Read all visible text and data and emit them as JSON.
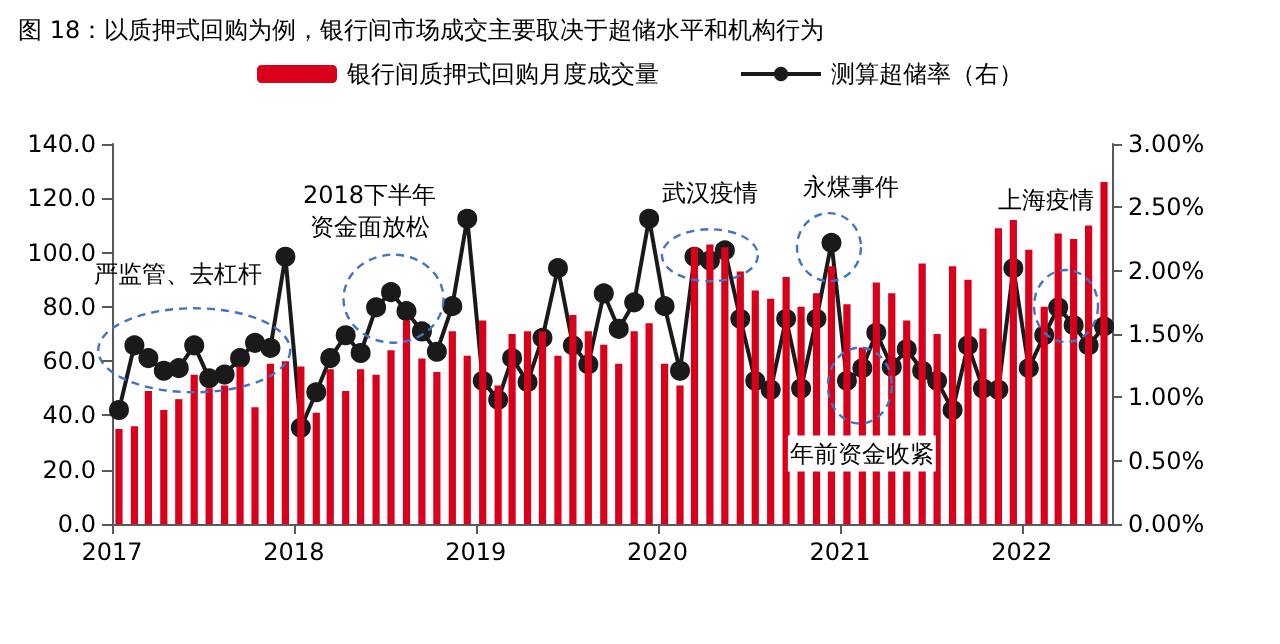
{
  "chart_data": {
    "type": "bar",
    "title": "图 18：以质押式回购为例，银行间市场成交主要取决于超储水平和机构行为",
    "x": [
      "2017-01-15",
      "2017-02-15",
      "2017-03-15",
      "2017-04-15",
      "2017-05-15",
      "2017-06-15",
      "2017-07-15",
      "2017-08-15",
      "2017-09-15",
      "2017-10-15",
      "2017-11-15",
      "2017-12-15",
      "2018-01-15",
      "2018-02-15",
      "2018-03-15",
      "2018-04-15",
      "2018-05-15",
      "2018-06-15",
      "2018-07-15",
      "2018-08-15",
      "2018-09-15",
      "2018-10-15",
      "2018-11-15",
      "2018-12-15",
      "2019-01-15",
      "2019-02-15",
      "2019-03-15",
      "2019-04-15",
      "2019-05-15",
      "2019-06-15",
      "2019-07-15",
      "2019-08-15",
      "2019-09-15",
      "2019-10-15",
      "2019-11-15",
      "2019-12-15",
      "2020-01-15",
      "2020-02-15",
      "2020-03-15",
      "2020-04-15",
      "2020-05-15",
      "2020-06-15",
      "2020-07-15",
      "2020-08-15",
      "2020-09-15",
      "2020-10-15",
      "2020-11-15",
      "2020-12-15",
      "2021-01-15",
      "2021-02-15",
      "2021-03-15",
      "2021-04-15",
      "2021-05-15",
      "2021-06-15",
      "2021-07-15",
      "2021-08-15",
      "2021-09-15",
      "2021-10-15",
      "2021-11-15",
      "2021-12-15",
      "2022-01-15",
      "2022-02-15",
      "2022-03-15",
      "2022-04-15",
      "2022-05-15",
      "2022-06-15"
    ],
    "series": [
      {
        "name": "银行间质押式回购月度成交量",
        "color": "#d9001b",
        "values": [
          35,
          36,
          49,
          42,
          46,
          55,
          50,
          51,
          58,
          43,
          59,
          60,
          58,
          41,
          57,
          49,
          57,
          55,
          64,
          75,
          61,
          56,
          71,
          62,
          75,
          51,
          70,
          71,
          71,
          62,
          77,
          71,
          66,
          59,
          71,
          74,
          59,
          51,
          102,
          103,
          102,
          93,
          86,
          83,
          91,
          80,
          85,
          95,
          81,
          65,
          89,
          85,
          75,
          96,
          70,
          95,
          90,
          72,
          109,
          112,
          101,
          80,
          107,
          105,
          110,
          126
        ]
      },
      {
        "name": "测算超储率（右）",
        "type": "line",
        "axis": "y2",
        "color": "#1a1a1a",
        "values": [
          0.9,
          1.41,
          1.31,
          1.21,
          1.23,
          1.41,
          1.15,
          1.18,
          1.31,
          1.43,
          1.39,
          2.11,
          0.76,
          1.04,
          1.31,
          1.49,
          1.35,
          1.71,
          1.83,
          1.68,
          1.52,
          1.36,
          1.72,
          2.41,
          1.13,
          0.98,
          1.31,
          1.12,
          1.47,
          2.02,
          1.41,
          1.26,
          1.82,
          1.54,
          1.75,
          2.41,
          1.72,
          1.21,
          2.11,
          2.08,
          2.16,
          1.62,
          1.13,
          1.06,
          1.62,
          1.07,
          1.62,
          2.22,
          1.13,
          1.23,
          1.51,
          1.24,
          1.38,
          1.21,
          1.13,
          0.9,
          1.41,
          1.07,
          1.06,
          2.02,
          1.23,
          1.49,
          1.71,
          1.57,
          1.41,
          1.56
        ]
      }
    ],
    "xlim": [
      "2017-01-01",
      "2022-07-01"
    ],
    "xticks": [
      {
        "value": "2017-01-01",
        "label": "2017"
      },
      {
        "value": "2018-01-01",
        "label": "2018"
      },
      {
        "value": "2019-01-01",
        "label": "2019"
      },
      {
        "value": "2020-01-01",
        "label": "2020"
      },
      {
        "value": "2021-01-01",
        "label": "2021"
      },
      {
        "value": "2022-01-01",
        "label": "2022"
      }
    ],
    "ylim": [
      0,
      140
    ],
    "yticks": [
      {
        "value": 0,
        "label": "0.0"
      },
      {
        "value": 20,
        "label": "20.0"
      },
      {
        "value": 40,
        "label": "40.0"
      },
      {
        "value": 60,
        "label": "60.0"
      },
      {
        "value": 80,
        "label": "80.0"
      },
      {
        "value": 100,
        "label": "100.0"
      },
      {
        "value": 120,
        "label": "120.0"
      },
      {
        "value": 140,
        "label": "140.0"
      }
    ],
    "y2lim": [
      0,
      3
    ],
    "y2ticks": [
      {
        "value": 0,
        "label": "0.00%"
      },
      {
        "value": 0.5,
        "label": "0.50%"
      },
      {
        "value": 1,
        "label": "1.00%"
      },
      {
        "value": 1.5,
        "label": "1.50%"
      },
      {
        "value": 2,
        "label": "2.00%"
      },
      {
        "value": 2.5,
        "label": "2.50%"
      },
      {
        "value": 3,
        "label": "3.00%"
      }
    ],
    "legend": "top",
    "marker": "circle",
    "annotations": [
      {
        "text": "严监管、去杠杆",
        "x": "2017-06-15",
        "y": 64
      },
      {
        "text": "2018下半年资金面放松",
        "x": "2018-07-20",
        "y": 83
      },
      {
        "text": "武汉疫情",
        "x": "2020-04-15",
        "y": 99
      },
      {
        "text": "永煤事件",
        "x": "2020-12-10",
        "y": 102
      },
      {
        "text": "年前资金收紧",
        "x": "2021-02-10",
        "y": 51
      },
      "上海疫情"
    ]
  }
}
